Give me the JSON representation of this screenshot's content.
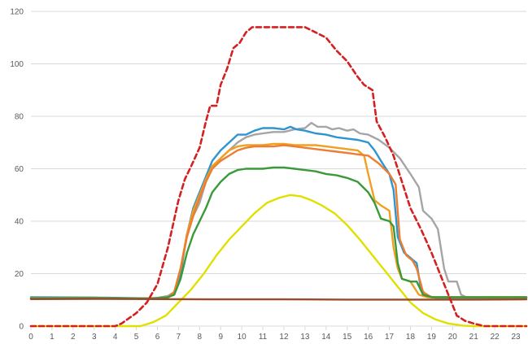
{
  "chart_data": {
    "type": "line",
    "title": "",
    "xlabel": "",
    "ylabel": "",
    "xlim": [
      0,
      23.5
    ],
    "ylim": [
      0,
      120
    ],
    "grid": "horizontal",
    "legend": "none",
    "xticks": [
      0,
      1,
      2,
      3,
      4,
      5,
      6,
      7,
      8,
      9,
      10,
      11,
      12,
      13,
      14,
      15,
      16,
      17,
      18,
      19,
      20,
      21,
      22,
      23
    ],
    "yticks": [
      0,
      20,
      40,
      60,
      80,
      100,
      120
    ],
    "series": [
      {
        "color": "#e0e000",
        "dash": false,
        "points": [
          [
            0,
            0
          ],
          [
            4.5,
            0
          ],
          [
            5.2,
            0
          ],
          [
            5.8,
            1.5
          ],
          [
            6.4,
            4
          ],
          [
            7,
            9
          ],
          [
            7.6,
            14
          ],
          [
            8.2,
            20
          ],
          [
            8.8,
            27
          ],
          [
            9.4,
            33
          ],
          [
            10,
            38
          ],
          [
            10.6,
            43
          ],
          [
            11.2,
            47
          ],
          [
            11.8,
            49
          ],
          [
            12.3,
            50
          ],
          [
            12.8,
            49.5
          ],
          [
            13.3,
            48
          ],
          [
            13.8,
            46
          ],
          [
            14.4,
            43
          ],
          [
            15,
            38.5
          ],
          [
            15.6,
            33
          ],
          [
            16.2,
            27
          ],
          [
            16.8,
            21
          ],
          [
            17.4,
            15
          ],
          [
            18,
            9
          ],
          [
            18.6,
            5
          ],
          [
            19.2,
            2.5
          ],
          [
            19.8,
            1
          ],
          [
            20.5,
            0.2
          ],
          [
            21,
            0
          ],
          [
            23.5,
            0
          ]
        ]
      },
      {
        "color": "#a5a5a5",
        "dash": false,
        "points": [
          [
            0,
            10.5
          ],
          [
            3,
            10.8
          ],
          [
            4.5,
            10.6
          ],
          [
            5.5,
            10.5
          ],
          [
            6,
            10.8
          ],
          [
            6.5,
            11.5
          ],
          [
            6.8,
            13
          ],
          [
            7.1,
            22
          ],
          [
            7.4,
            35
          ],
          [
            7.7,
            42
          ],
          [
            8,
            47
          ],
          [
            8.3,
            55
          ],
          [
            8.6,
            60
          ],
          [
            9,
            64
          ],
          [
            9.4,
            67
          ],
          [
            9.8,
            70
          ],
          [
            10.2,
            72
          ],
          [
            10.6,
            73
          ],
          [
            11,
            73.5
          ],
          [
            11.5,
            74
          ],
          [
            12,
            74
          ],
          [
            12.5,
            75
          ],
          [
            13,
            75.5
          ],
          [
            13.3,
            77.5
          ],
          [
            13.6,
            76
          ],
          [
            14,
            76
          ],
          [
            14.3,
            75
          ],
          [
            14.6,
            75.5
          ],
          [
            15,
            74.5
          ],
          [
            15.3,
            75
          ],
          [
            15.6,
            73.5
          ],
          [
            16,
            73
          ],
          [
            16.5,
            71
          ],
          [
            17,
            68
          ],
          [
            17.5,
            64
          ],
          [
            18,
            58
          ],
          [
            18.4,
            53
          ],
          [
            18.6,
            44
          ],
          [
            19,
            41
          ],
          [
            19.3,
            37
          ],
          [
            19.6,
            22
          ],
          [
            19.8,
            17
          ],
          [
            20.2,
            17
          ],
          [
            20.4,
            12
          ],
          [
            20.7,
            10.8
          ],
          [
            23.5,
            10.8
          ]
        ]
      },
      {
        "color": "#2e95cf",
        "dash": false,
        "points": [
          [
            0,
            11
          ],
          [
            3,
            10.9
          ],
          [
            4.5,
            10.7
          ],
          [
            5.5,
            10.6
          ],
          [
            6,
            10.7
          ],
          [
            6.5,
            11
          ],
          [
            6.8,
            12
          ],
          [
            7.1,
            20
          ],
          [
            7.4,
            35
          ],
          [
            7.7,
            45
          ],
          [
            8,
            51
          ],
          [
            8.3,
            57
          ],
          [
            8.6,
            63
          ],
          [
            9,
            67
          ],
          [
            9.4,
            70
          ],
          [
            9.8,
            73
          ],
          [
            10.2,
            73
          ],
          [
            10.6,
            74.5
          ],
          [
            11,
            75.5
          ],
          [
            11.5,
            75.5
          ],
          [
            12,
            75
          ],
          [
            12.3,
            76
          ],
          [
            12.6,
            75
          ],
          [
            13,
            74.5
          ],
          [
            13.5,
            73.5
          ],
          [
            14,
            73
          ],
          [
            14.5,
            72
          ],
          [
            15,
            71.5
          ],
          [
            15.5,
            71
          ],
          [
            16,
            70
          ],
          [
            16.3,
            67
          ],
          [
            16.6,
            63
          ],
          [
            17,
            58
          ],
          [
            17.2,
            52
          ],
          [
            17.4,
            34
          ],
          [
            17.7,
            28
          ],
          [
            18,
            26
          ],
          [
            18.3,
            24
          ],
          [
            18.5,
            14
          ],
          [
            18.8,
            11.5
          ],
          [
            19.2,
            10.8
          ],
          [
            23.5,
            10.8
          ]
        ]
      },
      {
        "color": "#f0a020",
        "dash": false,
        "points": [
          [
            0,
            10.7
          ],
          [
            3,
            10.8
          ],
          [
            4.5,
            10.6
          ],
          [
            5.5,
            10.5
          ],
          [
            6,
            10.6
          ],
          [
            6.5,
            11
          ],
          [
            6.8,
            13
          ],
          [
            7.1,
            22
          ],
          [
            7.4,
            35
          ],
          [
            7.7,
            44
          ],
          [
            8,
            50
          ],
          [
            8.3,
            56
          ],
          [
            8.6,
            61
          ],
          [
            9,
            64
          ],
          [
            9.4,
            67
          ],
          [
            9.8,
            68.5
          ],
          [
            10.2,
            69
          ],
          [
            10.6,
            69
          ],
          [
            11,
            69
          ],
          [
            11.5,
            69.5
          ],
          [
            12,
            69.5
          ],
          [
            12.5,
            69
          ],
          [
            13,
            69
          ],
          [
            13.5,
            69
          ],
          [
            14,
            68.5
          ],
          [
            14.5,
            68
          ],
          [
            15,
            67.5
          ],
          [
            15.5,
            67
          ],
          [
            15.8,
            65
          ],
          [
            16,
            58
          ],
          [
            16.3,
            48
          ],
          [
            16.6,
            46
          ],
          [
            17,
            44
          ],
          [
            17.2,
            30
          ],
          [
            17.4,
            22
          ],
          [
            17.6,
            18
          ],
          [
            18,
            17
          ],
          [
            18.4,
            12
          ],
          [
            18.8,
            11
          ],
          [
            23.5,
            11
          ]
        ]
      },
      {
        "color": "#ed7d31",
        "dash": false,
        "points": [
          [
            0,
            10.5
          ],
          [
            3,
            10.6
          ],
          [
            4.5,
            10.5
          ],
          [
            5.5,
            10.5
          ],
          [
            6,
            10.6
          ],
          [
            6.5,
            11
          ],
          [
            6.8,
            13
          ],
          [
            7.1,
            22
          ],
          [
            7.4,
            34
          ],
          [
            7.7,
            42
          ],
          [
            8,
            49
          ],
          [
            8.3,
            55
          ],
          [
            8.6,
            60
          ],
          [
            9,
            63
          ],
          [
            9.4,
            65
          ],
          [
            9.8,
            67
          ],
          [
            10.2,
            68
          ],
          [
            10.6,
            68.5
          ],
          [
            11,
            68.5
          ],
          [
            11.5,
            68.5
          ],
          [
            12,
            69
          ],
          [
            12.5,
            68.5
          ],
          [
            13,
            68
          ],
          [
            13.5,
            67.5
          ],
          [
            14,
            67
          ],
          [
            14.5,
            66.5
          ],
          [
            15,
            66
          ],
          [
            15.5,
            65.5
          ],
          [
            16,
            65
          ],
          [
            16.5,
            62
          ],
          [
            17,
            58
          ],
          [
            17.3,
            54
          ],
          [
            17.5,
            33
          ],
          [
            17.8,
            27
          ],
          [
            18.1,
            25
          ],
          [
            18.3,
            22
          ],
          [
            18.6,
            13
          ],
          [
            19,
            11
          ],
          [
            23.5,
            11
          ]
        ]
      },
      {
        "color": "#3a9a3a",
        "dash": false,
        "points": [
          [
            0,
            10.6
          ],
          [
            3,
            10.7
          ],
          [
            4.5,
            10.6
          ],
          [
            5.5,
            10.5
          ],
          [
            6,
            10.6
          ],
          [
            6.5,
            11
          ],
          [
            6.8,
            12
          ],
          [
            7.1,
            18
          ],
          [
            7.4,
            28
          ],
          [
            7.7,
            35
          ],
          [
            8,
            40
          ],
          [
            8.3,
            45
          ],
          [
            8.6,
            51
          ],
          [
            9,
            55
          ],
          [
            9.4,
            58
          ],
          [
            9.8,
            59.5
          ],
          [
            10.2,
            60
          ],
          [
            10.6,
            60
          ],
          [
            11,
            60
          ],
          [
            11.5,
            60.5
          ],
          [
            12,
            60.5
          ],
          [
            12.5,
            60
          ],
          [
            13,
            59.5
          ],
          [
            13.5,
            59
          ],
          [
            14,
            58
          ],
          [
            14.5,
            57.5
          ],
          [
            15,
            56.5
          ],
          [
            15.5,
            55
          ],
          [
            16,
            51
          ],
          [
            16.3,
            47
          ],
          [
            16.6,
            41
          ],
          [
            17,
            40
          ],
          [
            17.2,
            38
          ],
          [
            17.4,
            24
          ],
          [
            17.6,
            18
          ],
          [
            18,
            17
          ],
          [
            18.3,
            17
          ],
          [
            18.6,
            12
          ],
          [
            19,
            11
          ],
          [
            23.5,
            11
          ]
        ]
      },
      {
        "color": "#9c4a2a",
        "dash": false,
        "points": [
          [
            0,
            10.3
          ],
          [
            3,
            10.4
          ],
          [
            6,
            10.3
          ],
          [
            9,
            10.2
          ],
          [
            12,
            10.2
          ],
          [
            15,
            10.1
          ],
          [
            18,
            10.1
          ],
          [
            21,
            10.1
          ],
          [
            23.5,
            10.2
          ]
        ]
      },
      {
        "color": "#d42020",
        "dash": true,
        "points": [
          [
            0,
            0
          ],
          [
            4,
            0
          ],
          [
            4.3,
            1
          ],
          [
            5,
            5
          ],
          [
            5.5,
            9
          ],
          [
            6,
            16
          ],
          [
            6.5,
            30
          ],
          [
            7,
            48
          ],
          [
            7.3,
            56
          ],
          [
            7.6,
            61
          ],
          [
            8,
            68
          ],
          [
            8.3,
            78
          ],
          [
            8.5,
            84
          ],
          [
            8.8,
            84
          ],
          [
            9,
            92
          ],
          [
            9.3,
            98
          ],
          [
            9.6,
            106
          ],
          [
            9.9,
            108
          ],
          [
            10.2,
            112
          ],
          [
            10.5,
            114
          ],
          [
            11,
            114
          ],
          [
            12,
            114
          ],
          [
            13,
            114
          ],
          [
            13.5,
            112
          ],
          [
            14,
            110
          ],
          [
            14.5,
            105
          ],
          [
            15,
            101
          ],
          [
            15.5,
            95
          ],
          [
            15.8,
            92
          ],
          [
            16.2,
            90
          ],
          [
            16.4,
            78
          ],
          [
            16.8,
            72
          ],
          [
            17.2,
            65
          ],
          [
            17.6,
            55
          ],
          [
            18,
            45
          ],
          [
            18.5,
            37
          ],
          [
            19,
            28
          ],
          [
            19.5,
            18
          ],
          [
            19.8,
            12
          ],
          [
            20.2,
            4
          ],
          [
            20.6,
            2
          ],
          [
            21,
            1
          ],
          [
            21.5,
            0
          ],
          [
            23.5,
            0
          ]
        ]
      }
    ]
  }
}
